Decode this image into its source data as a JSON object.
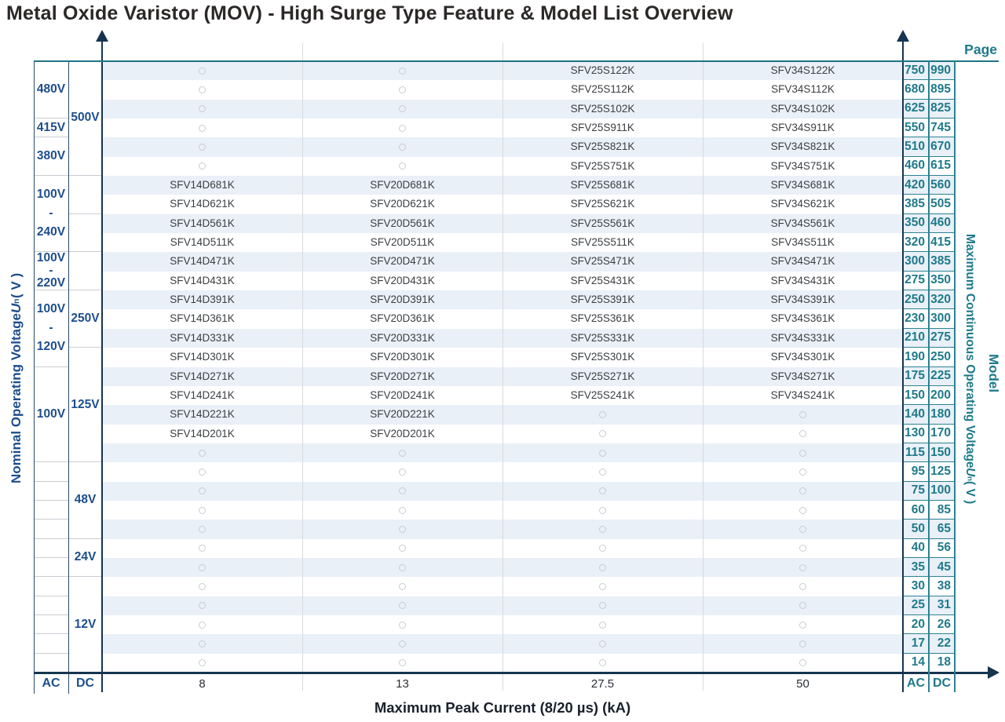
{
  "title": "Metal Oxide Varistor (MOV) - High Surge Type Feature & Model List Overview",
  "colors": {
    "accent_teal": "#1e7a8a",
    "accent_navy": "#1d4e8c",
    "axis_dark": "#16344f",
    "row_stripe": "#e9f0f8"
  },
  "chart_data": {
    "type": "table",
    "x_axis": {
      "label": "Maximum Peak Current (8/20 µs) (kA)",
      "ticks": [
        "8",
        "13",
        "27.5",
        "50"
      ]
    },
    "left_axis": {
      "title_prefix": "Nominal Operating Voltage ",
      "symbol": "U",
      "symbol_sub": "n",
      "title_suffix": " ( V )",
      "columns": [
        "AC",
        "DC"
      ],
      "ac_groups": [
        {
          "row": 0,
          "span": 3,
          "lines": [
            "480V"
          ]
        },
        {
          "row": 3,
          "span": 1,
          "lines": [
            "415V"
          ]
        },
        {
          "row": 4,
          "span": 2,
          "lines": [
            "380V"
          ]
        },
        {
          "row": 6,
          "span": 4,
          "lines": [
            "100V",
            "-",
            "240V"
          ]
        },
        {
          "row": 10,
          "span": 2,
          "lines": [
            "100V",
            "-",
            "220V"
          ]
        },
        {
          "row": 12,
          "span": 4,
          "lines": [
            "100V",
            "-",
            "120V"
          ]
        },
        {
          "row": 16,
          "span": 5,
          "lines": [
            "100V"
          ]
        }
      ],
      "dc_groups": [
        {
          "row": 0,
          "span": 6,
          "lines": [
            "500V"
          ]
        },
        {
          "row": 6,
          "span": 2,
          "lines": []
        },
        {
          "row": 8,
          "span": 2,
          "lines": []
        },
        {
          "row": 10,
          "span": 2,
          "lines": []
        },
        {
          "row": 12,
          "span": 3,
          "lines": [
            "250V"
          ]
        },
        {
          "row": 15,
          "span": 6,
          "lines": [
            "125V"
          ]
        },
        {
          "row": 21,
          "span": 4,
          "lines": [
            "48V"
          ]
        },
        {
          "row": 25,
          "span": 2,
          "lines": [
            "24V"
          ]
        },
        {
          "row": 27,
          "span": 5,
          "lines": [
            "12V"
          ]
        }
      ]
    },
    "right_axis": {
      "page_label": "Page",
      "model_label": "Model",
      "title_prefix": "Maximum Continuous Operating Voltage ",
      "symbol": "U",
      "symbol_sub": "n",
      "title_suffix": " ( V )",
      "columns": [
        "AC",
        "DC"
      ]
    },
    "rows": [
      {
        "ac": "750",
        "dc": "990",
        "models": [
          "",
          "",
          "SFV25S122K",
          "SFV34S122K"
        ]
      },
      {
        "ac": "680",
        "dc": "895",
        "models": [
          "",
          "",
          "SFV25S112K",
          "SFV34S112K"
        ]
      },
      {
        "ac": "625",
        "dc": "825",
        "models": [
          "",
          "",
          "SFV25S102K",
          "SFV34S102K"
        ]
      },
      {
        "ac": "550",
        "dc": "745",
        "models": [
          "",
          "",
          "SFV25S911K",
          "SFV34S911K"
        ]
      },
      {
        "ac": "510",
        "dc": "670",
        "models": [
          "",
          "",
          "SFV25S821K",
          "SFV34S821K"
        ]
      },
      {
        "ac": "460",
        "dc": "615",
        "models": [
          "",
          "",
          "SFV25S751K",
          "SFV34S751K"
        ]
      },
      {
        "ac": "420",
        "dc": "560",
        "models": [
          "SFV14D681K",
          "SFV20D681K",
          "SFV25S681K",
          "SFV34S681K"
        ]
      },
      {
        "ac": "385",
        "dc": "505",
        "models": [
          "SFV14D621K",
          "SFV20D621K",
          "SFV25S621K",
          "SFV34S621K"
        ]
      },
      {
        "ac": "350",
        "dc": "460",
        "models": [
          "SFV14D561K",
          "SFV20D561K",
          "SFV25S561K",
          "SFV34S561K"
        ]
      },
      {
        "ac": "320",
        "dc": "415",
        "models": [
          "SFV14D511K",
          "SFV20D511K",
          "SFV25S511K",
          "SFV34S511K"
        ]
      },
      {
        "ac": "300",
        "dc": "385",
        "models": [
          "SFV14D471K",
          "SFV20D471K",
          "SFV25S471K",
          "SFV34S471K"
        ]
      },
      {
        "ac": "275",
        "dc": "350",
        "models": [
          "SFV14D431K",
          "SFV20D431K",
          "SFV25S431K",
          "SFV34S431K"
        ]
      },
      {
        "ac": "250",
        "dc": "320",
        "models": [
          "SFV14D391K",
          "SFV20D391K",
          "SFV25S391K",
          "SFV34S391K"
        ]
      },
      {
        "ac": "230",
        "dc": "300",
        "models": [
          "SFV14D361K",
          "SFV20D361K",
          "SFV25S361K",
          "SFV34S361K"
        ]
      },
      {
        "ac": "210",
        "dc": "275",
        "models": [
          "SFV14D331K",
          "SFV20D331K",
          "SFV25S331K",
          "SFV34S331K"
        ]
      },
      {
        "ac": "190",
        "dc": "250",
        "models": [
          "SFV14D301K",
          "SFV20D301K",
          "SFV25S301K",
          "SFV34S301K"
        ]
      },
      {
        "ac": "175",
        "dc": "225",
        "models": [
          "SFV14D271K",
          "SFV20D271K",
          "SFV25S271K",
          "SFV34S271K"
        ]
      },
      {
        "ac": "150",
        "dc": "200",
        "models": [
          "SFV14D241K",
          "SFV20D241K",
          "SFV25S241K",
          "SFV34S241K"
        ]
      },
      {
        "ac": "140",
        "dc": "180",
        "models": [
          "SFV14D221K",
          "SFV20D221K",
          "",
          ""
        ]
      },
      {
        "ac": "130",
        "dc": "170",
        "models": [
          "SFV14D201K",
          "SFV20D201K",
          "",
          ""
        ]
      },
      {
        "ac": "115",
        "dc": "150",
        "models": [
          "",
          "",
          "",
          ""
        ]
      },
      {
        "ac": "95",
        "dc": "125",
        "models": [
          "",
          "",
          "",
          ""
        ]
      },
      {
        "ac": "75",
        "dc": "100",
        "models": [
          "",
          "",
          "",
          ""
        ]
      },
      {
        "ac": "60",
        "dc": "85",
        "models": [
          "",
          "",
          "",
          ""
        ]
      },
      {
        "ac": "50",
        "dc": "65",
        "models": [
          "",
          "",
          "",
          ""
        ]
      },
      {
        "ac": "40",
        "dc": "56",
        "models": [
          "",
          "",
          "",
          ""
        ]
      },
      {
        "ac": "35",
        "dc": "45",
        "models": [
          "",
          "",
          "",
          ""
        ]
      },
      {
        "ac": "30",
        "dc": "38",
        "models": [
          "",
          "",
          "",
          ""
        ]
      },
      {
        "ac": "25",
        "dc": "31",
        "models": [
          "",
          "",
          "",
          ""
        ]
      },
      {
        "ac": "20",
        "dc": "26",
        "models": [
          "",
          "",
          "",
          ""
        ]
      },
      {
        "ac": "17",
        "dc": "22",
        "models": [
          "",
          "",
          "",
          ""
        ]
      },
      {
        "ac": "14",
        "dc": "18",
        "models": [
          "",
          "",
          "",
          ""
        ]
      }
    ]
  }
}
